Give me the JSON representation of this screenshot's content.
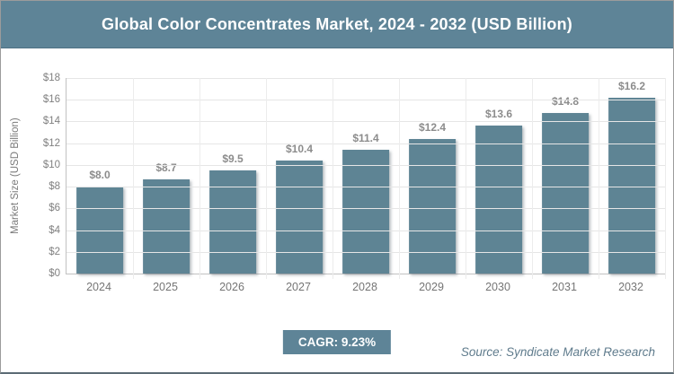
{
  "header": {
    "title": "Global Color Concentrates Market, 2024 - 2032 (USD Billion)"
  },
  "footer": {
    "cagr_label": "CAGR: 9.23%",
    "source": "Source: Syndicate Market Research"
  },
  "colors": {
    "accent": "#5e8497",
    "bar": "#5e8494",
    "grid": "#e6e6e6",
    "axis_text": "#808080",
    "label_text": "#8c8c8c",
    "source_text": "#5f7b8c"
  },
  "chart_data": {
    "type": "bar",
    "title": "Global Color Concentrates Market, 2024 - 2032 (USD Billion)",
    "categories": [
      "2024",
      "2025",
      "2026",
      "2027",
      "2028",
      "2029",
      "2030",
      "2031",
      "2032"
    ],
    "values": [
      8.0,
      8.7,
      9.5,
      10.4,
      11.4,
      12.4,
      13.6,
      14.8,
      16.2
    ],
    "value_labels": [
      "$8.0",
      "$8.7",
      "$9.5",
      "$10.4",
      "$11.4",
      "$12.4",
      "$13.6",
      "$14.8",
      "$16.2"
    ],
    "xlabel": "",
    "ylabel": "Market Size (USD Billion)",
    "ylim": [
      0,
      18
    ],
    "ytick_step": 2,
    "yticks": [
      0,
      2,
      4,
      6,
      8,
      10,
      12,
      14,
      16,
      18
    ],
    "ytick_labels": [
      "$0",
      "$2",
      "$4",
      "$6",
      "$8",
      "$10",
      "$12",
      "$14",
      "$16",
      "$18"
    ],
    "grid": true,
    "legend": false,
    "bar_color": "#5e8494"
  }
}
